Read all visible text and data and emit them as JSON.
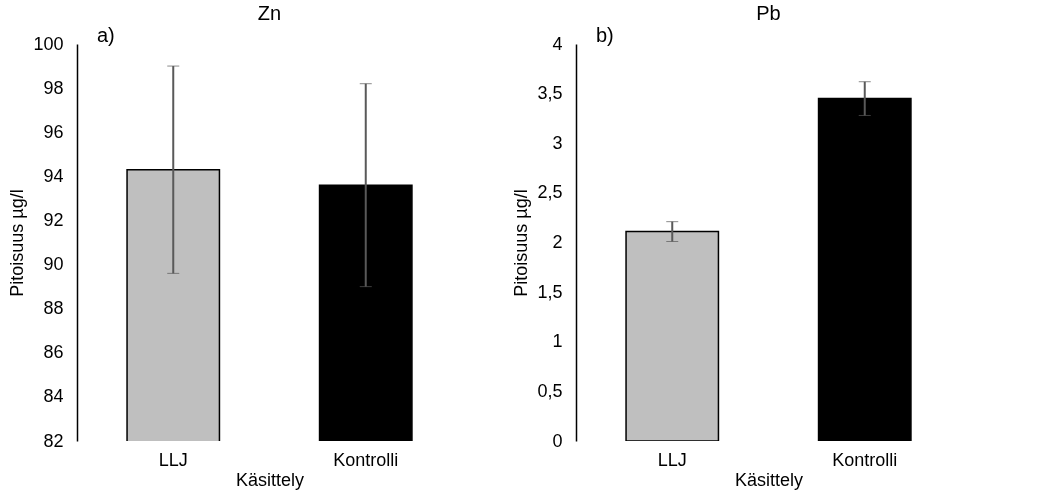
{
  "chart_data": [
    {
      "type": "bar",
      "title": "Zn",
      "annotations": [
        "a)"
      ],
      "xlabel": "Käsittely",
      "ylabel": "Pitoisuus µg/l",
      "categories": [
        "LLJ",
        "Kontrolli"
      ],
      "values": [
        94.3,
        93.6
      ],
      "errors": [
        4.7,
        4.6
      ],
      "colors": [
        "#bfbfbf",
        "#000000"
      ],
      "ylim": [
        82,
        100
      ],
      "yticks": [
        82,
        84,
        86,
        88,
        90,
        92,
        94,
        96,
        98,
        100
      ]
    },
    {
      "type": "bar",
      "title": "Pb",
      "annotations": [
        "b)"
      ],
      "xlabel": "Käsittely",
      "ylabel": "Pitoisuus µg/l",
      "categories": [
        "LLJ",
        "Kontrolli"
      ],
      "values": [
        2.11,
        3.45
      ],
      "errors": [
        0.1,
        0.17
      ],
      "colors": [
        "#bfbfbf",
        "#000000"
      ],
      "ylim": [
        0,
        4
      ],
      "yticks": [
        0,
        {
          "value": 0.5,
          "label": "0,5"
        },
        1,
        {
          "value": 1.5,
          "label": "1,5"
        },
        2,
        {
          "value": 2.5,
          "label": "2,5"
        },
        3,
        {
          "value": 3.5,
          "label": "3,5"
        },
        4
      ]
    }
  ]
}
